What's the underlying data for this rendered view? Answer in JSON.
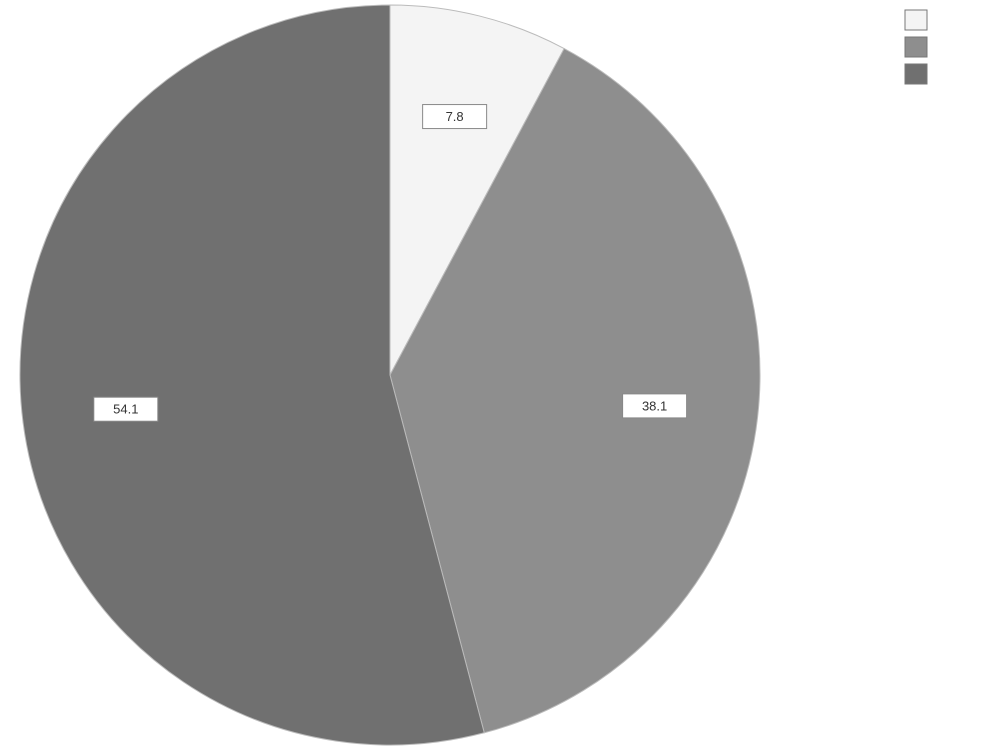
{
  "chart_data": {
    "type": "pie",
    "values": [
      7.8,
      38.1,
      54.1
    ],
    "colors": [
      "#f4f4f4",
      "#8e8e8e",
      "#707070"
    ]
  }
}
